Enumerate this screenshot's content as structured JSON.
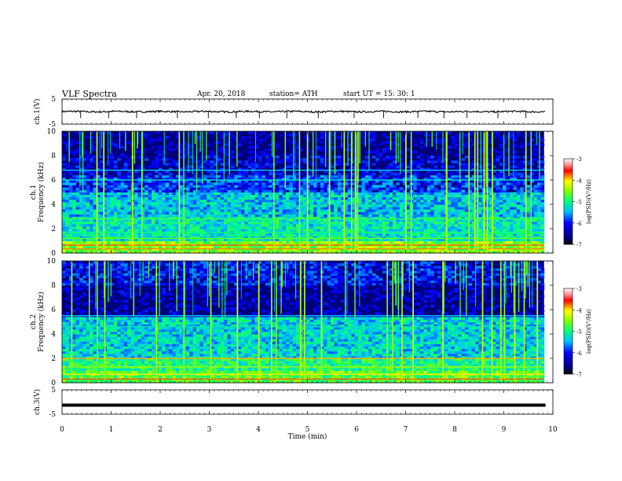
{
  "header": {
    "title": "VLF  Spectra",
    "date": "Apr. 20, 2018",
    "station": "station= ATH",
    "start": "start  UT  =   15: 30: 1"
  },
  "chart_data": [
    {
      "type": "line",
      "ylabel": "ch.1(V)",
      "ylim": [
        -5,
        5
      ],
      "yticks": [
        5,
        -5
      ],
      "xlim": [
        0,
        10
      ],
      "baseline": 0,
      "noise": 0.35,
      "spikes": [
        0.38,
        0.95,
        1.52,
        2.35,
        2.98,
        3.55,
        4.02,
        4.58,
        5.22,
        5.95,
        6.55,
        7.25,
        7.78,
        8.25,
        8.88,
        9.45
      ],
      "color": "#000000"
    },
    {
      "type": "heatmap",
      "ylabel": "ch.1\nFrequency (kHz)",
      "ylim": [
        0,
        10
      ],
      "yticks": [
        0,
        2,
        4,
        6,
        8,
        10
      ],
      "xlim": [
        0,
        10
      ],
      "colorbar": {
        "label": "log(PSD)(V²/Hz)",
        "range": [
          -7,
          -3
        ],
        "ticks": [
          -3,
          -4,
          -5,
          -6,
          -7
        ]
      }
    },
    {
      "type": "heatmap",
      "ylabel": "ch.2\nFrequency (kHz)",
      "ylim": [
        0,
        10
      ],
      "yticks": [
        0,
        2,
        4,
        6,
        8,
        10
      ],
      "xlim": [
        0,
        10
      ],
      "colorbar": {
        "label": "log(PSD)(V²/Hz)",
        "range": [
          -7,
          -3
        ],
        "ticks": [
          -3,
          -4,
          -5,
          -6,
          -7
        ]
      }
    },
    {
      "type": "line",
      "ylabel": "ch.3(V)",
      "ylim": [
        -5,
        5
      ],
      "yticks": [
        5,
        -5
      ],
      "xlim": [
        0,
        10
      ],
      "baseline": -1.3,
      "color": "#000000"
    }
  ],
  "xaxis": {
    "label": "Time  (min)",
    "ticks": [
      0,
      1,
      2,
      3,
      4,
      5,
      6,
      7,
      8,
      9,
      10
    ]
  }
}
